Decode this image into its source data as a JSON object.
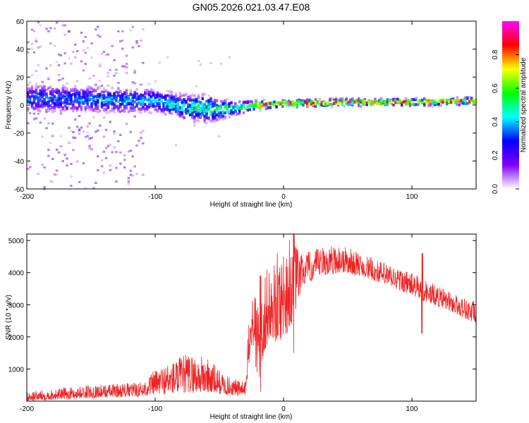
{
  "title": "GN05.2026.021.03.47.E08",
  "chart_data": [
    {
      "type": "heatmap",
      "name": "spectrogram",
      "xlabel": "Height of straight line (km)",
      "ylabel": "Frequency (Hz)",
      "xlim": [
        -200,
        150
      ],
      "ylim": [
        -60,
        60
      ],
      "xticks": [
        -200,
        -100,
        0,
        100
      ],
      "xtick_labels": [
        "-200",
        "-100",
        "0",
        "100"
      ],
      "yticks": [
        -60,
        -40,
        -20,
        0,
        20,
        40,
        60
      ],
      "ytick_labels": [
        "-60",
        "-40",
        "-20",
        "0",
        "20",
        "40",
        "60"
      ],
      "colorbar": {
        "label": "Normalized spectral amplitude",
        "range": [
          0,
          1
        ],
        "ticks": [
          0.0,
          0.2,
          0.4,
          0.6,
          0.8
        ],
        "tick_labels": [
          "0.0",
          "0.2",
          "0.4",
          "0.6",
          "0.8"
        ],
        "colormap": [
          "#ffffff",
          "#8000ff",
          "#0000ff",
          "#00ffff",
          "#00ff00",
          "#ffff00",
          "#ff0000",
          "#ff00ff"
        ]
      },
      "band_center_hz": [
        [
          -200,
          5
        ],
        [
          -150,
          4
        ],
        [
          -100,
          3
        ],
        [
          -75,
          -2
        ],
        [
          -50,
          -3
        ],
        [
          -35,
          -2
        ],
        [
          -20,
          0
        ],
        [
          0,
          1
        ],
        [
          50,
          2
        ],
        [
          100,
          2
        ],
        [
          150,
          3
        ]
      ],
      "band_halfwidth_hz": [
        [
          -200,
          12
        ],
        [
          -100,
          10
        ],
        [
          -60,
          12
        ],
        [
          -40,
          6
        ],
        [
          -20,
          4
        ],
        [
          0,
          3
        ],
        [
          150,
          3
        ]
      ],
      "peak_amplitude": [
        [
          -200,
          0.35
        ],
        [
          -100,
          0.45
        ],
        [
          -40,
          0.6
        ],
        [
          -20,
          0.85
        ],
        [
          0,
          0.95
        ],
        [
          50,
          1.0
        ],
        [
          150,
          0.9
        ]
      ],
      "noise_region_km": [
        -200,
        -110
      ]
    },
    {
      "type": "line",
      "name": "snr",
      "xlabel": "Height of straight line (km)",
      "ylabel": "SNR (10 * v/v)",
      "xlim": [
        -200,
        150
      ],
      "ylim": [
        0,
        5200
      ],
      "xticks": [
        -200,
        -100,
        0,
        100
      ],
      "xtick_labels": [
        "-200",
        "-100",
        "0",
        "100"
      ],
      "yticks": [
        1000,
        2000,
        3000,
        4000,
        5000
      ],
      "ytick_labels": [
        "1000",
        "2000",
        "3000",
        "4000",
        "5000"
      ],
      "color": "#ee2222",
      "envelope": [
        {
          "x": -200,
          "low": 0,
          "high": 300
        },
        {
          "x": -150,
          "low": 100,
          "high": 500
        },
        {
          "x": -110,
          "low": 150,
          "high": 600
        },
        {
          "x": -100,
          "low": 200,
          "high": 1000
        },
        {
          "x": -75,
          "low": 250,
          "high": 1500
        },
        {
          "x": -60,
          "low": 250,
          "high": 1400
        },
        {
          "x": -45,
          "low": 200,
          "high": 800
        },
        {
          "x": -30,
          "low": 150,
          "high": 600
        },
        {
          "x": -28,
          "low": 800,
          "high": 2000
        },
        {
          "x": -24,
          "low": 1800,
          "high": 3600
        },
        {
          "x": -20,
          "low": 400,
          "high": 3400
        },
        {
          "x": -15,
          "low": 1500,
          "high": 4200
        },
        {
          "x": -10,
          "low": 2000,
          "high": 4000
        },
        {
          "x": -5,
          "low": 1800,
          "high": 4600
        },
        {
          "x": 5,
          "low": 2200,
          "high": 5200
        },
        {
          "x": 15,
          "low": 3600,
          "high": 4600
        },
        {
          "x": 30,
          "low": 3900,
          "high": 4800
        },
        {
          "x": 45,
          "low": 4000,
          "high": 4900
        },
        {
          "x": 60,
          "low": 3900,
          "high": 4600
        },
        {
          "x": 80,
          "low": 3600,
          "high": 4300
        },
        {
          "x": 100,
          "low": 3300,
          "high": 4000
        },
        {
          "x": 110,
          "low": 3100,
          "high": 3800
        },
        {
          "x": 130,
          "low": 2800,
          "high": 3400
        },
        {
          "x": 150,
          "low": 2400,
          "high": 3100
        }
      ],
      "spikes": [
        {
          "x": 108,
          "low": 2100,
          "high": 4600
        },
        {
          "x": 8,
          "low": 1500,
          "high": 5200
        },
        {
          "x": -18,
          "low": 300,
          "high": 3900
        }
      ]
    }
  ]
}
